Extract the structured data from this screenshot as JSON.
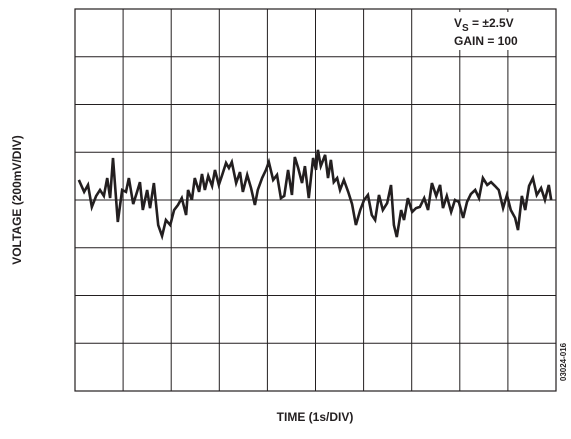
{
  "chart_data": {
    "type": "line",
    "x_label": "TIME (1s/DIV)",
    "y_label": "VOLTAGE (200mV/DIV)",
    "supply_label": {
      "symbol": "V",
      "subscript": "S",
      "text": " = ±2.5V"
    },
    "annotation": "GAIN = 100",
    "figure_id": "03024-016",
    "color": "#231f20",
    "grid": true,
    "xlim": [
      0,
      10
    ],
    "ylim": [
      -800,
      800
    ],
    "xticks": [
      0,
      1,
      2,
      3,
      4,
      5,
      6,
      7,
      8,
      9,
      10
    ],
    "yticks": [
      -800,
      -600,
      -400,
      -200,
      0,
      200,
      400,
      600,
      800
    ],
    "x": [
      0.08,
      0.19,
      0.27,
      0.35,
      0.44,
      0.52,
      0.6,
      0.67,
      0.73,
      0.79,
      0.89,
      0.98,
      1.06,
      1.12,
      1.21,
      1.29,
      1.35,
      1.41,
      1.5,
      1.56,
      1.64,
      1.73,
      1.81,
      1.89,
      1.98,
      2.06,
      2.14,
      2.22,
      2.31,
      2.35,
      2.43,
      2.49,
      2.58,
      2.64,
      2.7,
      2.77,
      2.85,
      2.91,
      2.99,
      3.06,
      3.14,
      3.2,
      3.26,
      3.35,
      3.43,
      3.49,
      3.58,
      3.66,
      3.74,
      3.8,
      3.89,
      3.97,
      4.03,
      4.12,
      4.2,
      4.28,
      4.35,
      4.43,
      4.51,
      4.57,
      4.64,
      4.72,
      4.78,
      4.86,
      4.95,
      5.01,
      5.05,
      5.11,
      5.2,
      5.26,
      5.32,
      5.38,
      5.45,
      5.51,
      5.59,
      5.68,
      5.76,
      5.84,
      5.93,
      6.01,
      6.09,
      6.17,
      6.24,
      6.32,
      6.4,
      6.49,
      6.57,
      6.63,
      6.69,
      6.78,
      6.84,
      6.92,
      7.01,
      7.09,
      7.17,
      7.26,
      7.34,
      7.42,
      7.51,
      7.59,
      7.65,
      7.73,
      7.82,
      7.9,
      7.98,
      8.07,
      8.15,
      8.23,
      8.32,
      8.4,
      8.48,
      8.57,
      8.65,
      8.73,
      8.81,
      8.9,
      8.98,
      9.06,
      9.15,
      9.21,
      9.29,
      9.36,
      9.44,
      9.52,
      9.6,
      9.69,
      9.77,
      9.85,
      9.9
    ],
    "values": [
      84,
      34,
      63,
      -29,
      17,
      42,
      17,
      92,
      8,
      176,
      -92,
      42,
      34,
      92,
      -17,
      34,
      75,
      -42,
      42,
      -34,
      71,
      -105,
      -151,
      -84,
      -105,
      -42,
      -21,
      8,
      -63,
      42,
      0,
      92,
      34,
      109,
      42,
      101,
      59,
      126,
      63,
      105,
      155,
      134,
      159,
      71,
      117,
      34,
      105,
      50,
      -21,
      42,
      92,
      126,
      159,
      84,
      105,
      8,
      17,
      126,
      21,
      180,
      134,
      71,
      142,
      8,
      176,
      126,
      210,
      142,
      189,
      92,
      168,
      75,
      92,
      42,
      84,
      34,
      -17,
      -105,
      -42,
      0,
      21,
      -63,
      -84,
      21,
      -42,
      -13,
      63,
      -105,
      -155,
      -42,
      -84,
      8,
      -50,
      -34,
      -29,
      8,
      -42,
      71,
      17,
      63,
      -34,
      17,
      -50,
      0,
      -8,
      -75,
      -8,
      25,
      42,
      8,
      92,
      63,
      75,
      59,
      42,
      -34,
      21,
      -42,
      -75,
      -126,
      17,
      -42,
      59,
      92,
      21,
      50,
      0,
      63,
      0
    ]
  }
}
